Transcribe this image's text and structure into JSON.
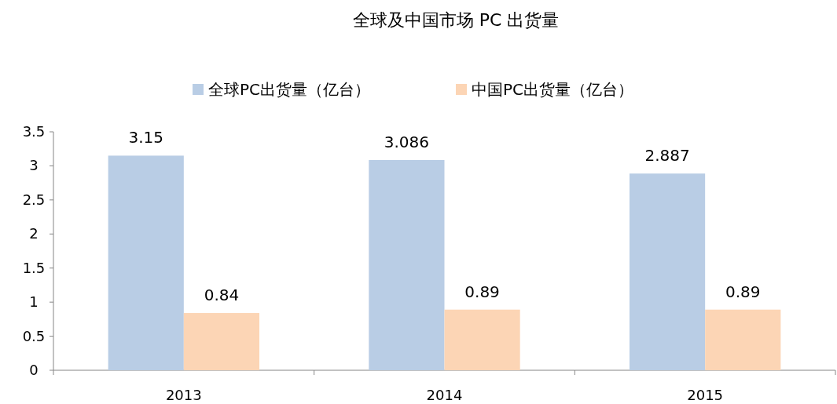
{
  "chart_data": {
    "type": "bar",
    "title": "全球及中国市场 PC 出货量",
    "categories": [
      "2013",
      "2014",
      "2015"
    ],
    "series": [
      {
        "name": "全球PC出货量（亿台）",
        "color": "#b9cde5",
        "values": [
          3.15,
          3.086,
          2.887
        ]
      },
      {
        "name": "中国PC出货量（亿台）",
        "color": "#fcd5b5",
        "values": [
          0.84,
          0.89,
          0.89
        ]
      }
    ],
    "ylim": [
      0,
      3.5
    ],
    "yticks": [
      0,
      0.5,
      1,
      1.5,
      2,
      2.5,
      3,
      3.5
    ],
    "data_labels": true,
    "legend": "top",
    "grid": false
  }
}
